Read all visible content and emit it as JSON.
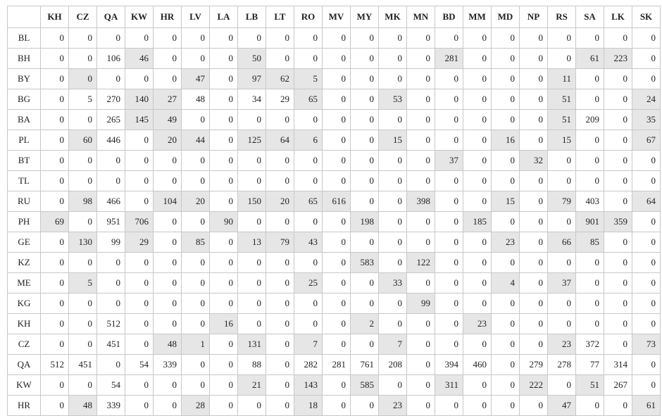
{
  "table": {
    "columns": [
      "KH",
      "CZ",
      "QA",
      "KW",
      "HR",
      "LV",
      "LA",
      "LB",
      "LT",
      "RO",
      "MV",
      "MY",
      "MK",
      "MN",
      "BD",
      "MM",
      "MD",
      "NP",
      "RS",
      "SA",
      "LK",
      "SK"
    ],
    "rows": [
      {
        "label": "BL",
        "values": [
          0,
          0,
          0,
          0,
          0,
          0,
          0,
          0,
          0,
          0,
          0,
          0,
          0,
          0,
          0,
          0,
          0,
          0,
          0,
          0,
          0,
          0
        ],
        "shaded": []
      },
      {
        "label": "BH",
        "values": [
          0,
          0,
          106,
          46,
          0,
          0,
          0,
          50,
          0,
          0,
          0,
          0,
          0,
          0,
          281,
          0,
          0,
          0,
          0,
          61,
          223,
          0
        ],
        "shaded": [
          3,
          7,
          14,
          19,
          20
        ]
      },
      {
        "label": "BY",
        "values": [
          0,
          0,
          0,
          0,
          0,
          47,
          0,
          97,
          62,
          5,
          0,
          0,
          0,
          0,
          0,
          0,
          0,
          0,
          11,
          0,
          0,
          0
        ],
        "shaded": [
          1,
          5,
          7,
          8,
          9,
          18
        ]
      },
      {
        "label": "BG",
        "values": [
          0,
          5,
          270,
          140,
          27,
          48,
          0,
          34,
          29,
          65,
          0,
          0,
          53,
          0,
          0,
          0,
          0,
          0,
          51,
          0,
          0,
          24
        ],
        "shaded": [
          3,
          4,
          9,
          12,
          18,
          21
        ]
      },
      {
        "label": "BA",
        "values": [
          0,
          0,
          265,
          145,
          49,
          0,
          0,
          0,
          0,
          0,
          0,
          0,
          0,
          0,
          0,
          0,
          0,
          0,
          51,
          209,
          0,
          35
        ],
        "shaded": [
          3,
          4,
          18,
          21
        ]
      },
      {
        "label": "PL",
        "values": [
          0,
          60,
          446,
          0,
          20,
          44,
          0,
          125,
          64,
          6,
          0,
          0,
          15,
          0,
          0,
          0,
          16,
          0,
          15,
          0,
          0,
          67
        ],
        "shaded": [
          1,
          4,
          5,
          7,
          8,
          9,
          12,
          16,
          18,
          21
        ]
      },
      {
        "label": "BT",
        "values": [
          0,
          0,
          0,
          0,
          0,
          0,
          0,
          0,
          0,
          0,
          0,
          0,
          0,
          0,
          37,
          0,
          0,
          32,
          0,
          0,
          0,
          0
        ],
        "shaded": [
          14,
          17
        ]
      },
      {
        "label": "TL",
        "values": [
          0,
          0,
          0,
          0,
          0,
          0,
          0,
          0,
          0,
          0,
          0,
          0,
          0,
          0,
          0,
          0,
          0,
          0,
          0,
          0,
          0,
          0
        ],
        "shaded": []
      },
      {
        "label": "RU",
        "values": [
          0,
          98,
          466,
          0,
          104,
          20,
          0,
          150,
          20,
          65,
          616,
          0,
          0,
          398,
          0,
          0,
          15,
          0,
          79,
          403,
          0,
          64
        ],
        "shaded": [
          1,
          4,
          5,
          7,
          8,
          9,
          10,
          13,
          16,
          18,
          21
        ]
      },
      {
        "label": "PH",
        "values": [
          69,
          0,
          951,
          706,
          0,
          0,
          90,
          0,
          0,
          0,
          0,
          198,
          0,
          0,
          0,
          185,
          0,
          0,
          0,
          901,
          359,
          0
        ],
        "shaded": [
          0,
          3,
          6,
          11,
          15,
          19,
          20
        ]
      },
      {
        "label": "GE",
        "values": [
          0,
          130,
          99,
          29,
          0,
          85,
          0,
          13,
          79,
          43,
          0,
          0,
          0,
          0,
          0,
          0,
          23,
          0,
          66,
          85,
          0,
          0
        ],
        "shaded": [
          1,
          3,
          5,
          7,
          8,
          9,
          16,
          18,
          19
        ]
      },
      {
        "label": "KZ",
        "values": [
          0,
          0,
          0,
          0,
          0,
          0,
          0,
          0,
          0,
          0,
          0,
          583,
          0,
          122,
          0,
          0,
          0,
          0,
          0,
          0,
          0,
          0
        ],
        "shaded": [
          11,
          13
        ]
      },
      {
        "label": "ME",
        "values": [
          0,
          5,
          0,
          0,
          0,
          0,
          0,
          0,
          0,
          25,
          0,
          0,
          33,
          0,
          0,
          0,
          4,
          0,
          37,
          0,
          0,
          0
        ],
        "shaded": [
          1,
          9,
          12,
          16,
          18
        ]
      },
      {
        "label": "KG",
        "values": [
          0,
          0,
          0,
          0,
          0,
          0,
          0,
          0,
          0,
          0,
          0,
          0,
          0,
          99,
          0,
          0,
          0,
          0,
          0,
          0,
          0,
          0
        ],
        "shaded": [
          13
        ]
      },
      {
        "label": "KH",
        "values": [
          0,
          0,
          512,
          0,
          0,
          0,
          16,
          0,
          0,
          0,
          0,
          2,
          0,
          0,
          0,
          23,
          0,
          0,
          0,
          0,
          0,
          0
        ],
        "shaded": [
          6,
          11,
          15
        ]
      },
      {
        "label": "CZ",
        "values": [
          0,
          0,
          451,
          0,
          48,
          1,
          0,
          131,
          0,
          7,
          0,
          0,
          7,
          0,
          0,
          0,
          0,
          0,
          23,
          372,
          0,
          73
        ],
        "shaded": [
          4,
          5,
          7,
          9,
          12,
          18,
          21
        ]
      },
      {
        "label": "QA",
        "values": [
          512,
          451,
          0,
          54,
          339,
          0,
          0,
          88,
          0,
          282,
          281,
          761,
          208,
          0,
          394,
          460,
          0,
          279,
          278,
          77,
          314,
          0
        ],
        "shaded": []
      },
      {
        "label": "KW",
        "values": [
          0,
          0,
          54,
          0,
          0,
          0,
          0,
          21,
          0,
          143,
          0,
          585,
          0,
          0,
          311,
          0,
          0,
          222,
          0,
          51,
          267,
          0
        ],
        "shaded": [
          7,
          9,
          11,
          14,
          17,
          19
        ]
      },
      {
        "label": "HR",
        "values": [
          0,
          48,
          339,
          0,
          0,
          28,
          0,
          0,
          0,
          18,
          0,
          0,
          23,
          0,
          0,
          0,
          0,
          0,
          47,
          0,
          0,
          61
        ],
        "shaded": [
          1,
          5,
          9,
          12,
          18,
          21
        ]
      }
    ]
  }
}
